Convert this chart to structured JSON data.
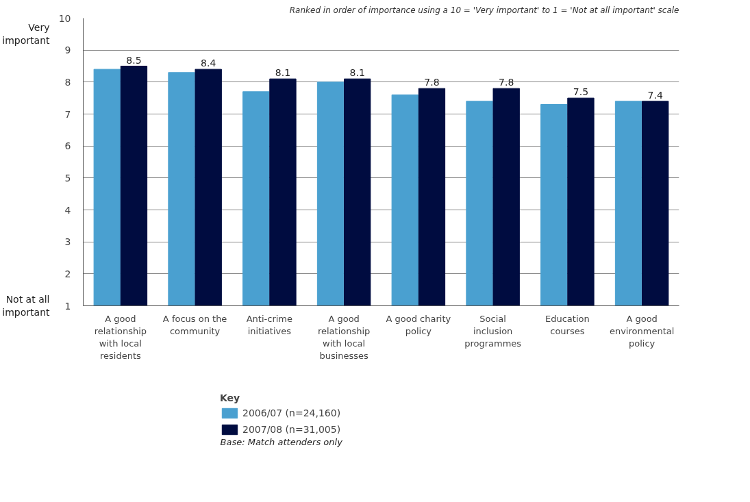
{
  "chart_data": {
    "type": "bar",
    "title": "Ranked in order of importance using a 10 = 'Very important' to 1 = 'Not at all important' scale",
    "categories": [
      "A good relationship with local residents",
      "A focus on the community",
      "Anti-crime initiatives",
      "A good relationship with local businesses",
      "A good charity policy",
      "Social inclusion programmes",
      "Education courses",
      "A good environmental policy"
    ],
    "series": [
      {
        "name": "2006/07 (n=24,160)",
        "color": "#4aa0d0",
        "values": [
          8.4,
          8.3,
          7.7,
          8.0,
          7.6,
          7.4,
          7.3,
          7.4
        ]
      },
      {
        "name": "2007/08 (n=31,005)",
        "color": "#000c40",
        "values": [
          8.5,
          8.4,
          8.1,
          8.1,
          7.8,
          7.8,
          7.5,
          7.4
        ],
        "value_labels": [
          "8.5",
          "8.4",
          "8.1",
          "8.1",
          "7.8",
          "7.8",
          "7.5",
          "7.4"
        ]
      }
    ],
    "ylim": [
      1,
      10
    ],
    "yticks": [
      1,
      2,
      3,
      4,
      5,
      6,
      7,
      8,
      9,
      10
    ],
    "grid": "y",
    "legend": "bottom left",
    "legend_title": "Key",
    "annotations": [
      "Very important",
      "Not at all important",
      "Base: Match attenders only"
    ]
  }
}
